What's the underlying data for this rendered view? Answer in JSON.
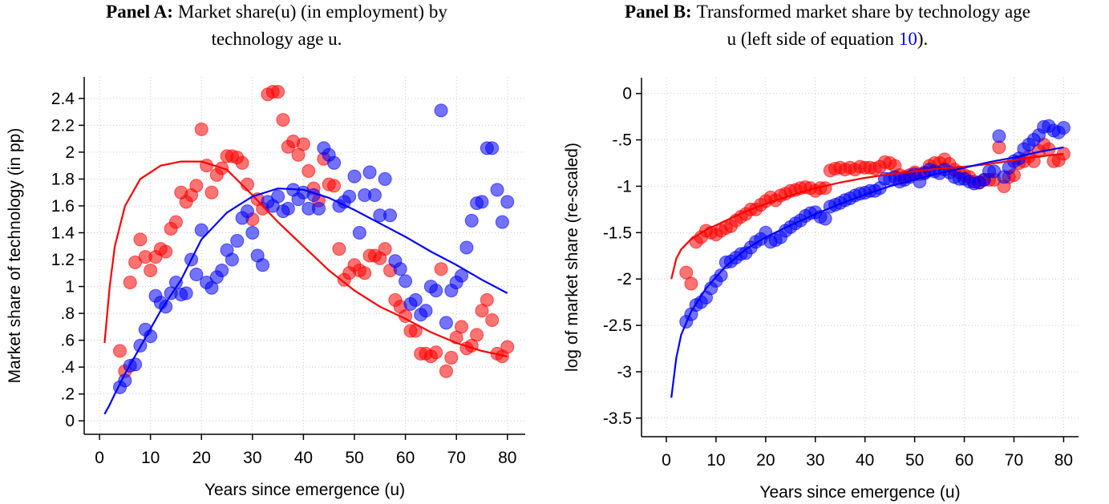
{
  "chart_data": [
    {
      "type": "scatter",
      "title_label": "Panel A:",
      "title": [
        "Market share(u) (in employment) by",
        "technology age u."
      ],
      "xlabel": "Years since emergence (u)",
      "ylabel": "Market share of technology (in pp)",
      "xlim": [
        -3,
        83.5
      ],
      "ylim": [
        -0.1,
        2.56
      ],
      "xticks": [
        0,
        10,
        20,
        30,
        40,
        50,
        60,
        70,
        80
      ],
      "yticks": [
        0,
        {
          "value": 0.2,
          "label": ".2"
        },
        {
          "value": 0.4,
          "label": ".4"
        },
        {
          "value": 0.6,
          "label": ".6"
        },
        {
          "value": 0.8,
          "label": ".8"
        },
        1,
        1.2,
        1.4,
        1.6,
        1.8,
        2,
        2.2,
        2.4
      ],
      "grid": true,
      "x": [
        4,
        5,
        6,
        7,
        8,
        9,
        10,
        11,
        12,
        13,
        14,
        15,
        16,
        17,
        18,
        19,
        20,
        21,
        22,
        23,
        24,
        25,
        26,
        27,
        28,
        29,
        30,
        31,
        32,
        33,
        34,
        35,
        36,
        37,
        38,
        39,
        40,
        41,
        42,
        43,
        44,
        45,
        46,
        47,
        48,
        49,
        50,
        51,
        52,
        53,
        54,
        55,
        56,
        57,
        58,
        59,
        60,
        61,
        62,
        63,
        64,
        65,
        66,
        67,
        68,
        69,
        70,
        71,
        72,
        73,
        74,
        75,
        76,
        77,
        78,
        79,
        80
      ],
      "series": [
        {
          "color": "#ff0000",
          "values": [
            0.52,
            0.37,
            1.03,
            1.18,
            1.35,
            1.22,
            1.12,
            1.22,
            1.28,
            1.26,
            1.43,
            1.48,
            1.7,
            1.63,
            1.68,
            1.75,
            2.17,
            1.9,
            1.7,
            1.83,
            1.88,
            1.97,
            1.97,
            1.96,
            1.92,
            1.76,
            1.5,
            1.65,
            1.58,
            2.43,
            2.45,
            2.45,
            2.24,
            2.04,
            2.08,
            1.98,
            2.06,
            1.86,
            1.73,
            1.64,
            1.95,
            1.76,
            1.75,
            1.28,
            1.05,
            1.1,
            1.16,
            1.12,
            1.1,
            1.23,
            1.23,
            1.21,
            1.28,
            1.12,
            0.9,
            0.85,
            0.78,
            0.67,
            0.67,
            0.5,
            0.5,
            0.48,
            0.51,
            1.13,
            0.37,
            0.47,
            0.62,
            0.7,
            0.54,
            0.56,
            0.64,
            0.82,
            0.9,
            0.75,
            0.5,
            0.48,
            0.55
          ]
        },
        {
          "color": "#0000ff",
          "values": [
            0.25,
            0.3,
            0.41,
            0.42,
            0.56,
            0.68,
            0.63,
            0.93,
            0.88,
            0.85,
            0.95,
            1.03,
            0.94,
            0.95,
            1.2,
            1.09,
            1.42,
            1.03,
            0.99,
            1.07,
            1.12,
            1.27,
            1.2,
            1.34,
            1.51,
            1.56,
            1.4,
            1.23,
            1.16,
            1.63,
            1.6,
            1.67,
            1.56,
            1.58,
            1.72,
            1.65,
            1.7,
            1.58,
            1.68,
            1.58,
            2.03,
            1.98,
            1.92,
            1.6,
            1.63,
            1.67,
            1.82,
            1.4,
            1.68,
            1.85,
            1.68,
            1.53,
            1.8,
            1.53,
            1.19,
            1.13,
            1.04,
            0.87,
            0.9,
            0.79,
            0.82,
            1.0,
            0.97,
            2.31,
            0.73,
            0.97,
            1.03,
            1.08,
            1.29,
            1.49,
            1.62,
            1.63,
            2.03,
            2.03,
            1.72,
            1.48,
            1.63
          ]
        }
      ],
      "fit_x": [
        1,
        2,
        3,
        5,
        8,
        12,
        16,
        20,
        25,
        30,
        35,
        40,
        45,
        50,
        55,
        60,
        65,
        70,
        75,
        80
      ],
      "fits": [
        {
          "color": "#ff0000",
          "values": [
            0.58,
            1.0,
            1.3,
            1.6,
            1.8,
            1.9,
            1.93,
            1.93,
            1.87,
            1.68,
            1.48,
            1.3,
            1.12,
            0.97,
            0.85,
            0.76,
            0.66,
            0.58,
            0.52,
            0.48
          ]
        },
        {
          "color": "#0000ff",
          "values": [
            0.05,
            0.12,
            0.2,
            0.35,
            0.55,
            0.82,
            1.05,
            1.35,
            1.55,
            1.67,
            1.73,
            1.72,
            1.66,
            1.57,
            1.47,
            1.37,
            1.26,
            1.16,
            1.05,
            0.95
          ]
        }
      ]
    },
    {
      "type": "scatter",
      "title_label": "Panel B:",
      "title": [
        "Transformed market share by technology age",
        "u (left side of equation"
      ],
      "title_ref": "10",
      "title_end": ").",
      "xlabel": "Years since emergence (u)",
      "ylabel": "log of market share (re-scaled)",
      "xlim": [
        -5,
        83
      ],
      "ylim": [
        -3.7,
        0.17
      ],
      "xticks": [
        0,
        10,
        20,
        30,
        40,
        50,
        60,
        70,
        80
      ],
      "yticks": [
        {
          "value": -3.5,
          "label": "-3.5"
        },
        -3,
        {
          "value": -2.5,
          "label": "-2.5"
        },
        -2,
        {
          "value": -1.5,
          "label": "-1.5"
        },
        -1,
        {
          "value": -0.5,
          "label": "-.5"
        },
        0
      ],
      "grid": true,
      "x": [
        4,
        5,
        6,
        7,
        8,
        9,
        10,
        11,
        12,
        13,
        14,
        15,
        16,
        17,
        18,
        19,
        20,
        21,
        22,
        23,
        24,
        25,
        26,
        27,
        28,
        29,
        30,
        31,
        32,
        33,
        34,
        35,
        36,
        37,
        38,
        39,
        40,
        41,
        42,
        43,
        44,
        45,
        46,
        47,
        48,
        49,
        50,
        51,
        52,
        53,
        54,
        55,
        56,
        57,
        58,
        59,
        60,
        61,
        62,
        63,
        64,
        65,
        66,
        67,
        68,
        69,
        70,
        71,
        72,
        73,
        74,
        75,
        76,
        77,
        78,
        79,
        80
      ],
      "series": [
        {
          "color": "#ff0000",
          "values": [
            -1.93,
            -2.05,
            -1.6,
            -1.55,
            -1.48,
            -1.5,
            -1.52,
            -1.48,
            -1.45,
            -1.43,
            -1.37,
            -1.33,
            -1.3,
            -1.25,
            -1.25,
            -1.2,
            -1.16,
            -1.12,
            -1.15,
            -1.1,
            -1.08,
            -1.05,
            -1.04,
            -1.02,
            -1.01,
            -1.02,
            -1.05,
            -1.02,
            -1.02,
            -0.83,
            -0.81,
            -0.8,
            -0.82,
            -0.8,
            -0.82,
            -0.79,
            -0.8,
            -0.8,
            -0.81,
            -0.79,
            -0.74,
            -0.75,
            -0.78,
            -0.88,
            -0.9,
            -0.88,
            -0.85,
            -0.87,
            -0.85,
            -0.78,
            -0.75,
            -0.75,
            -0.71,
            -0.76,
            -0.82,
            -0.85,
            -0.88,
            -0.9,
            -0.95,
            -0.96,
            -0.93,
            -0.93,
            -0.93,
            -0.58,
            -1.0,
            -0.9,
            -0.88,
            -0.75,
            -0.73,
            -0.68,
            -0.73,
            -0.62,
            -0.55,
            -0.6,
            -0.73,
            -0.72,
            -0.65
          ]
        },
        {
          "color": "#0000ff",
          "values": [
            -2.46,
            -2.38,
            -2.28,
            -2.25,
            -2.2,
            -2.1,
            -2.02,
            -1.96,
            -1.82,
            -1.81,
            -1.77,
            -1.73,
            -1.72,
            -1.66,
            -1.6,
            -1.57,
            -1.5,
            -1.6,
            -1.58,
            -1.55,
            -1.48,
            -1.44,
            -1.4,
            -1.37,
            -1.32,
            -1.29,
            -1.28,
            -1.33,
            -1.35,
            -1.22,
            -1.2,
            -1.18,
            -1.15,
            -1.13,
            -1.1,
            -1.08,
            -1.07,
            -1.05,
            -1.05,
            -1.02,
            -0.92,
            -0.92,
            -0.9,
            -0.95,
            -0.93,
            -0.9,
            -0.87,
            -0.95,
            -0.86,
            -0.82,
            -0.84,
            -0.86,
            -0.82,
            -0.85,
            -0.9,
            -0.92,
            -0.92,
            -0.95,
            -0.97,
            -0.96,
            -0.93,
            -0.84,
            -0.84,
            -0.46,
            -0.9,
            -0.8,
            -0.73,
            -0.7,
            -0.6,
            -0.55,
            -0.5,
            -0.45,
            -0.36,
            -0.35,
            -0.4,
            -0.42,
            -0.37
          ]
        }
      ],
      "fit_x": [
        1,
        2,
        3,
        5,
        8,
        12,
        16,
        20,
        25,
        30,
        35,
        40,
        45,
        50,
        55,
        60,
        65,
        70,
        75,
        80
      ],
      "fits": [
        {
          "color": "#ff0000",
          "values": [
            -2.0,
            -1.78,
            -1.68,
            -1.57,
            -1.47,
            -1.37,
            -1.27,
            -1.19,
            -1.1,
            -1.02,
            -0.96,
            -0.91,
            -0.87,
            -0.84,
            -0.81,
            -0.79,
            -0.76,
            -0.72,
            -0.68,
            -0.65
          ]
        },
        {
          "color": "#0000ff",
          "values": [
            -3.28,
            -2.85,
            -2.6,
            -2.35,
            -2.1,
            -1.86,
            -1.68,
            -1.55,
            -1.42,
            -1.3,
            -1.19,
            -1.09,
            -1.0,
            -0.93,
            -0.86,
            -0.8,
            -0.74,
            -0.69,
            -0.63,
            -0.58
          ]
        }
      ]
    }
  ]
}
